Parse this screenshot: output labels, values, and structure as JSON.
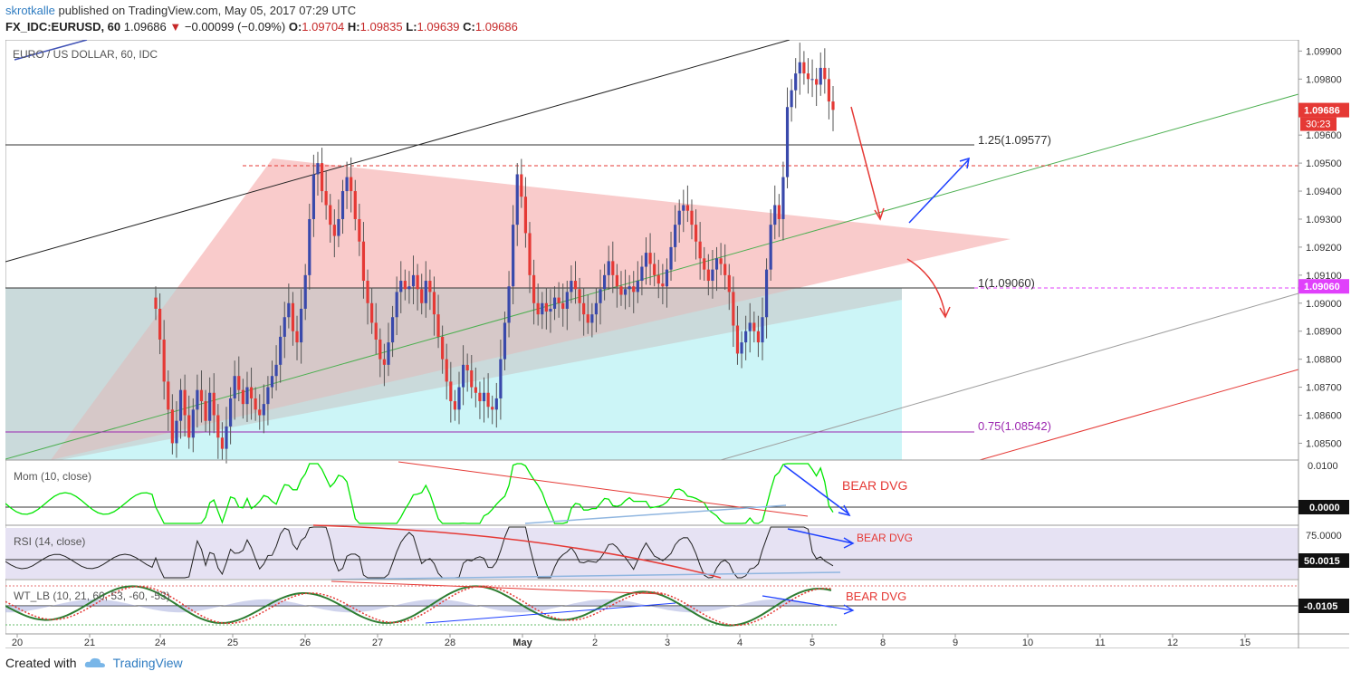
{
  "header": {
    "author": "skrotkalle",
    "published_text": "published on TradingView.com, May 05, 2017 07:29 UTC",
    "symbol_line": "FX_IDC:EURUSD, 60",
    "last": "1.09686",
    "change": "−0.00099 (−0.09%)",
    "o_label": "O:",
    "o": "1.09704",
    "h_label": "H:",
    "h": "1.09835",
    "l_label": "L:",
    "l": "1.09639",
    "c_label": "C:",
    "c": "1.09686"
  },
  "footer": {
    "created_with": "Created with",
    "brand": "TradingView"
  },
  "chart_data": {
    "type": "candlestick",
    "title": "EURO / US DOLLAR, 60, IDC",
    "price_axis": {
      "range": [
        1.0844,
        1.0994
      ],
      "ticks": [
        "1.09900",
        "1.09800",
        "1.09700",
        "1.09600",
        "1.09500",
        "1.09400",
        "1.09300",
        "1.09200",
        "1.09100",
        "1.09000",
        "1.08900",
        "1.08800",
        "1.08700",
        "1.08600",
        "1.08500"
      ],
      "last_price_label": "1.09686",
      "countdown_label": "30:23",
      "level_label": "1.09060"
    },
    "x_axis": {
      "ticks": [
        "20",
        "21",
        "24",
        "25",
        "26",
        "27",
        "28",
        "May",
        "2",
        "3",
        "4",
        "5",
        "8",
        "9",
        "10",
        "11",
        "12",
        "15"
      ]
    },
    "fib_levels": [
      {
        "label": "1.25(1.09577)",
        "price": 1.09577,
        "color": "#333333"
      },
      {
        "label": "1(1.09060)",
        "price": 1.0906,
        "color": "#333333"
      },
      {
        "label": "0.75(1.08542)",
        "price": 1.08542,
        "color": "#9c27b0"
      }
    ],
    "dashed_levels": [
      {
        "price": 1.095,
        "color": "#e53935"
      },
      {
        "price": 1.0906,
        "color": "#e040fb"
      }
    ],
    "candles_close": [
      1.0898,
      1.0887,
      1.0872,
      1.0862,
      1.085,
      1.0858,
      1.0869,
      1.086,
      1.0852,
      1.0862,
      1.0869,
      1.0865,
      1.0858,
      1.0868,
      1.086,
      1.0852,
      1.0848,
      1.0856,
      1.0866,
      1.0874,
      1.0869,
      1.0864,
      1.087,
      1.0866,
      1.0862,
      1.086,
      1.0864,
      1.087,
      1.0874,
      1.0878,
      1.0888,
      1.0895,
      1.09,
      1.089,
      1.0886,
      1.0898,
      1.091,
      1.093,
      1.0946,
      1.095,
      1.094,
      1.0935,
      1.0928,
      1.0924,
      1.093,
      1.094,
      1.0945,
      1.094,
      1.093,
      1.0922,
      1.0908,
      1.09,
      1.0893,
      1.0887,
      1.088,
      1.0878,
      1.0886,
      1.0895,
      1.0904,
      1.0908,
      1.0905,
      1.0906,
      1.091,
      1.0905,
      1.09,
      1.0908,
      1.0904,
      1.0896,
      1.0888,
      1.088,
      1.0872,
      1.0865,
      1.0862,
      1.087,
      1.0878,
      1.0876,
      1.087,
      1.0868,
      1.0865,
      1.0868,
      1.0863,
      1.0862,
      1.0866,
      1.088,
      1.0893,
      1.0906,
      1.0928,
      1.0946,
      1.0938,
      1.0925,
      1.091,
      1.09,
      1.0896,
      1.09,
      1.0897,
      1.0898,
      1.0902,
      1.09,
      1.0898,
      1.0904,
      1.0908,
      1.0905,
      1.09,
      1.0896,
      1.0893,
      1.0896,
      1.09,
      1.0905,
      1.091,
      1.0915,
      1.091,
      1.0906,
      1.0903,
      1.0905,
      1.0906,
      1.0904,
      1.0908,
      1.0913,
      1.0918,
      1.0914,
      1.091,
      1.0907,
      1.0906,
      1.0912,
      1.092,
      1.0928,
      1.0933,
      1.0935,
      1.0933,
      1.0928,
      1.0922,
      1.0916,
      1.0912,
      1.0908,
      1.0912,
      1.0916,
      1.0914,
      1.091,
      1.0904,
      1.0892,
      1.0882,
      1.0886,
      1.089,
      1.0893,
      1.089,
      1.0886,
      1.0895,
      1.0912,
      1.0928,
      1.0935,
      1.093,
      1.0945,
      1.097,
      1.0976,
      1.0982,
      1.0986,
      1.0982,
      1.098,
      1.098,
      1.0978,
      1.0984,
      1.098,
      1.0972,
      1.0969
    ],
    "annotations": [
      "BEAR DVG",
      "BEAR DVG",
      "BEAR DVG"
    ],
    "indicators": [
      {
        "name": "Mom (10, close)",
        "tick": "0.0100",
        "value_label": "0.0000"
      },
      {
        "name": "RSI (14, close)",
        "tick": "75.0000",
        "value_label": "50.0015"
      },
      {
        "name": "WT_LB (10, 21, 60, 53, -60, -53)",
        "value_label": "-0.0105"
      }
    ],
    "colors": {
      "up": "#3949ab",
      "down": "#e53935",
      "triangle": "#f6b5b5",
      "box_cyan": "#ccf5f7",
      "box_grey": "#d0d0d0",
      "rsi_band": "#e6e2f3",
      "mom": "#00c853"
    }
  }
}
